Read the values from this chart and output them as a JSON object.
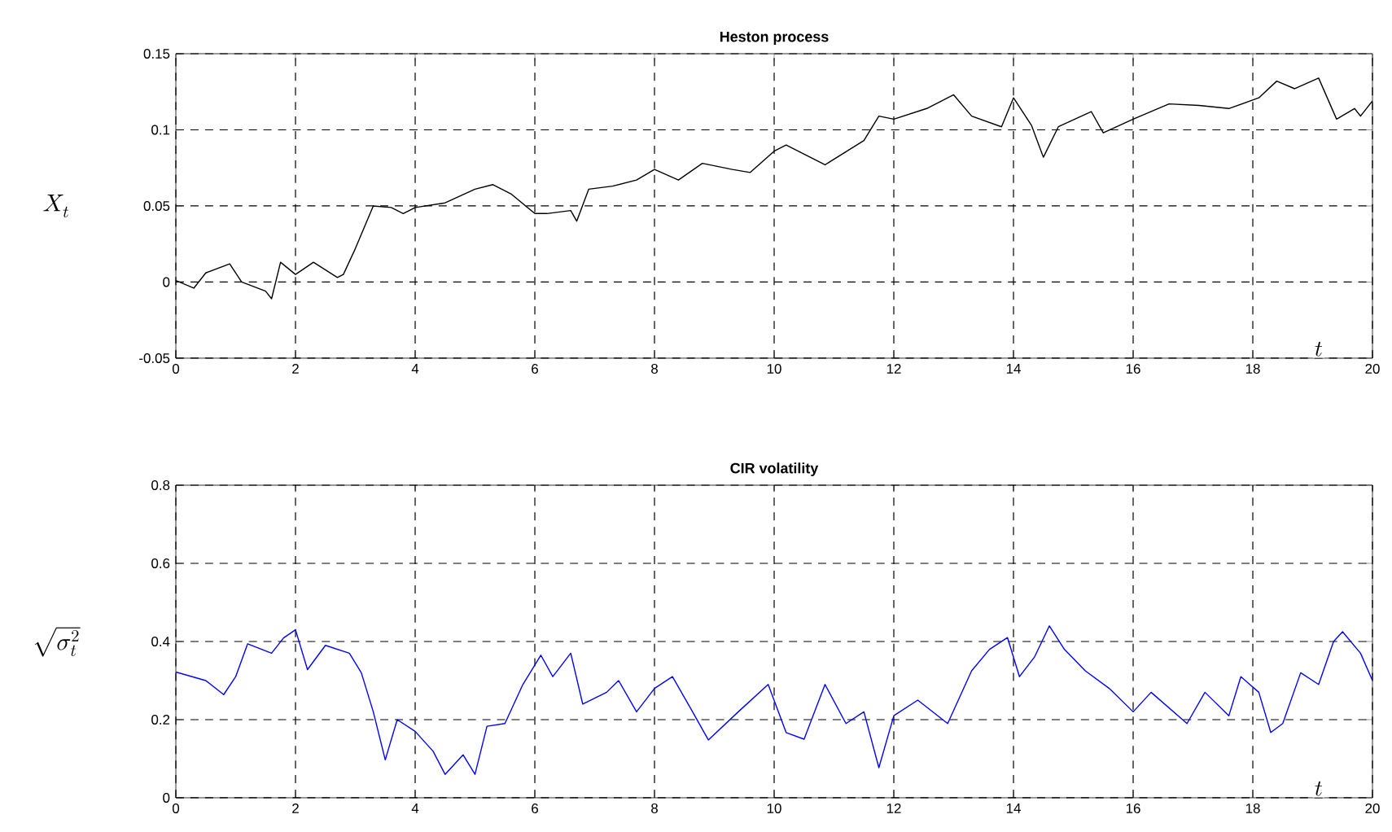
{
  "chart_data": [
    {
      "type": "line",
      "title": "Heston process",
      "xlabel": "t",
      "ylabel": "X_t",
      "xlim": [
        0,
        20
      ],
      "ylim": [
        -0.05,
        0.15
      ],
      "xticks": [
        0,
        2,
        4,
        6,
        8,
        10,
        12,
        14,
        16,
        18,
        20
      ],
      "yticks": [
        -0.05,
        0,
        0.05,
        0.1,
        0.15
      ],
      "grid": true,
      "line_style": "solid",
      "series": [
        {
          "color": "#000000",
          "x": [
            0,
            0.3,
            0.5,
            0.9,
            1.1,
            1.5,
            1.6,
            1.75,
            2,
            2.3,
            2.7,
            2.8,
            3.0,
            3.3,
            3.6,
            3.8,
            4,
            4.5,
            5,
            5.3,
            5.6,
            6,
            6.2,
            6.6,
            6.7,
            6.9,
            7.3,
            7.7,
            8,
            8.4,
            8.8,
            9.3,
            9.6,
            10,
            10.2,
            10.85,
            11.5,
            11.75,
            12,
            12.55,
            13,
            13.3,
            13.8,
            14,
            14.3,
            14.5,
            14.75,
            15.3,
            15.5,
            16,
            16.6,
            17.1,
            17.6,
            18.1,
            18.4,
            18.7,
            19.1,
            19.4,
            19.7,
            19.8,
            20
          ],
          "values": [
            0.001,
            -0.004,
            0.006,
            0.012,
            0,
            -0.006,
            -0.011,
            0.013,
            0.005,
            0.013,
            0.003,
            0.005,
            0.022,
            0.05,
            0.049,
            0.045,
            0.049,
            0.052,
            0.061,
            0.064,
            0.058,
            0.045,
            0.045,
            0.047,
            0.04,
            0.061,
            0.063,
            0.067,
            0.074,
            0.067,
            0.078,
            0.074,
            0.072,
            0.086,
            0.09,
            0.077,
            0.093,
            0.109,
            0.107,
            0.114,
            0.123,
            0.109,
            0.102,
            0.121,
            0.103,
            0.082,
            0.102,
            0.112,
            0.098,
            0.107,
            0.117,
            0.116,
            0.114,
            0.121,
            0.132,
            0.127,
            0.134,
            0.107,
            0.114,
            0.109,
            0.119
          ]
        }
      ]
    },
    {
      "type": "line",
      "title": "CIR volatility",
      "xlabel": "t",
      "ylabel": "\\sqrt{\\sigma_t^2}",
      "xlim": [
        0,
        20
      ],
      "ylim": [
        0,
        0.8
      ],
      "xticks": [
        0,
        2,
        4,
        6,
        8,
        10,
        12,
        14,
        16,
        18,
        20
      ],
      "yticks": [
        0,
        0.2,
        0.4,
        0.6,
        0.8
      ],
      "grid": true,
      "line_style": "solid",
      "series": [
        {
          "color": "#0000ff",
          "x": [
            0,
            0.5,
            0.8,
            1.0,
            1.2,
            1.6,
            1.8,
            2.0,
            2.2,
            2.5,
            2.9,
            3.1,
            3.3,
            3.5,
            3.7,
            4.0,
            4.3,
            4.5,
            4.8,
            5.0,
            5.2,
            5.5,
            5.8,
            6.1,
            6.3,
            6.6,
            6.8,
            7.2,
            7.4,
            7.7,
            8.0,
            8.3,
            8.6,
            8.9,
            9.4,
            9.9,
            10.2,
            10.5,
            10.85,
            11.2,
            11.5,
            11.75,
            12,
            12.4,
            12.9,
            13.3,
            13.6,
            13.9,
            14.1,
            14.35,
            14.6,
            14.85,
            15.2,
            15.6,
            16,
            16.3,
            16.9,
            17.2,
            17.6,
            17.8,
            18.1,
            18.3,
            18.5,
            18.8,
            19.1,
            19.35,
            19.5,
            19.8,
            20
          ],
          "values": [
            0.322,
            0.3,
            0.264,
            0.31,
            0.394,
            0.37,
            0.409,
            0.43,
            0.328,
            0.39,
            0.37,
            0.32,
            0.22,
            0.097,
            0.2,
            0.17,
            0.119,
            0.06,
            0.11,
            0.06,
            0.183,
            0.19,
            0.29,
            0.365,
            0.31,
            0.37,
            0.24,
            0.27,
            0.3,
            0.22,
            0.28,
            0.31,
            0.23,
            0.148,
            0.22,
            0.29,
            0.167,
            0.15,
            0.29,
            0.19,
            0.22,
            0.077,
            0.21,
            0.25,
            0.19,
            0.325,
            0.38,
            0.41,
            0.31,
            0.36,
            0.44,
            0.38,
            0.325,
            0.28,
            0.22,
            0.27,
            0.19,
            0.27,
            0.21,
            0.31,
            0.27,
            0.167,
            0.19,
            0.32,
            0.29,
            0.4,
            0.425,
            0.37,
            0.3
          ]
        }
      ]
    }
  ]
}
